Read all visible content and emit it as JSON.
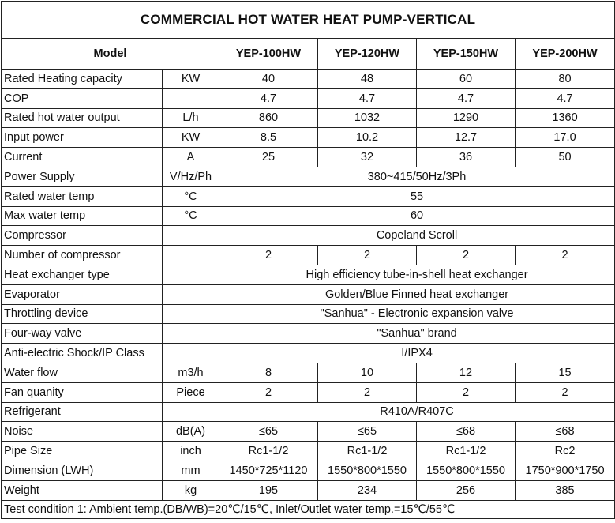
{
  "title": "COMMERCIAL HOT WATER HEAT PUMP-VERTICAL",
  "header": {
    "model_label": "Model",
    "models": [
      "YEP-100HW",
      "YEP-120HW",
      "YEP-150HW",
      "YEP-200HW"
    ]
  },
  "rows": [
    {
      "param": "Rated Heating capacity",
      "unit": "KW",
      "values": [
        "40",
        "48",
        "60",
        "80"
      ]
    },
    {
      "param": "COP",
      "unit": "",
      "values": [
        "4.7",
        "4.7",
        "4.7",
        "4.7"
      ]
    },
    {
      "param": "Rated hot water output",
      "unit": "L/h",
      "values": [
        "860",
        "1032",
        "1290",
        "1360"
      ]
    },
    {
      "param": "Input power",
      "unit": "KW",
      "values": [
        "8.5",
        "10.2",
        "12.7",
        "17.0"
      ]
    },
    {
      "param": "Current",
      "unit": "A",
      "values": [
        "25",
        "32",
        "36",
        "50"
      ]
    },
    {
      "param": "Power Supply",
      "unit": "V/Hz/Ph",
      "span": "380~415/50Hz/3Ph"
    },
    {
      "param": "Rated water temp",
      "unit": "°C",
      "span": "55"
    },
    {
      "param": "Max water temp",
      "unit": "°C",
      "span": "60"
    },
    {
      "param": "Compressor",
      "unit": "",
      "span": "Copeland Scroll"
    },
    {
      "param": "Number of compressor",
      "unit": "",
      "values": [
        "2",
        "2",
        "2",
        "2"
      ]
    },
    {
      "param": "Heat exchanger type",
      "unit": "",
      "span": "High efficiency tube-in-shell heat exchanger"
    },
    {
      "param": "Evaporator",
      "unit": "",
      "span": "Golden/Blue Finned heat exchanger"
    },
    {
      "param": "Throttling device",
      "unit": "",
      "span": "\"Sanhua\" - Electronic expansion valve"
    },
    {
      "param": "Four-way valve",
      "unit": "",
      "span": "\"Sanhua\" brand"
    },
    {
      "param": "Anti-electric Shock/IP Class",
      "unit": "",
      "span": "I/IPX4"
    },
    {
      "param": "Water flow",
      "unit": "m3/h",
      "values": [
        "8",
        "10",
        "12",
        "15"
      ]
    },
    {
      "param": "Fan quanity",
      "unit": "Piece",
      "values": [
        "2",
        "2",
        "2",
        "2"
      ]
    },
    {
      "param": "Refrigerant",
      "unit": "",
      "span": "R410A/R407C"
    },
    {
      "param": "Noise",
      "unit": "dB(A)",
      "values": [
        "≤65",
        "≤65",
        "≤68",
        "≤68"
      ]
    },
    {
      "param": "Pipe Size",
      "unit": "inch",
      "values": [
        "Rc1-1/2",
        "Rc1-1/2",
        "Rc1-1/2",
        "Rc2"
      ]
    },
    {
      "param": "Dimension (LWH)",
      "unit": "mm",
      "values": [
        "1450*725*1120",
        "1550*800*1550",
        "1550*800*1550",
        "1750*900*1750"
      ]
    },
    {
      "param": "Weight",
      "unit": "kg",
      "values": [
        "195",
        "234",
        "256",
        "385"
      ]
    }
  ],
  "footer": "Test condition 1:  Ambient temp.(DB/WB)=20℃/15℃, Inlet/Outlet water temp.=15℃/55℃"
}
